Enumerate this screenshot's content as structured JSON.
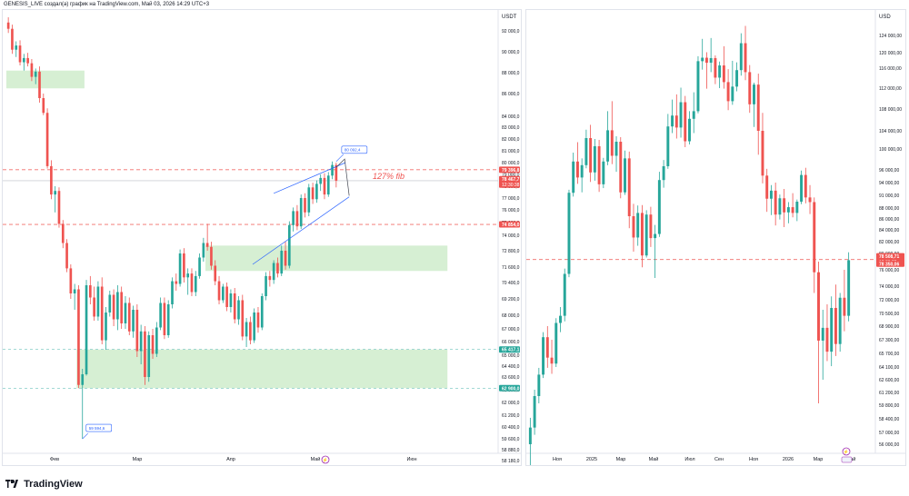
{
  "header": {
    "text": "GENESIS_LIVE создал(а) график на TradingView.com, Май 03, 2026 14:29 UTC+3"
  },
  "footer": {
    "brand": "TradingView"
  },
  "colors": {
    "up": "#26a69a",
    "down": "#ef5350",
    "zone": "#d6efd3",
    "axis": "#e0e3eb",
    "text": "#131722"
  },
  "chart_data": [
    {
      "type": "candlestick",
      "symbol_currency": "USDT",
      "x_ticks": [
        "Фев",
        "Мар",
        "Апр",
        "Май",
        "Июн"
      ],
      "y_ticks": [
        "92 000,0",
        "90 000,0",
        "88 000,0",
        "86 000,0",
        "84 000,0",
        "83 000,0",
        "82 000,0",
        "81 000,0",
        "80 000,0",
        "79 000,0",
        "78 000,0",
        "77 000,0",
        "76 000,0",
        "75 000,0",
        "74 000,0",
        "72 800,0",
        "71 600,0",
        "70 400,0",
        "69 200,0",
        "68 000,0",
        "67 000,0",
        "66 000,0",
        "65 000,0",
        "64 400,0",
        "63 600,0",
        "62 800,0",
        "62 000,0",
        "61 200,0",
        "60 400,0",
        "59 600,0",
        "58 880,0",
        "58 180,0"
      ],
      "price_labels": [
        {
          "text": "79 396,8",
          "price": 79396.8,
          "color": "#ef5350"
        },
        {
          "text": "78 467,7",
          "price": 78600,
          "color": "#ef5350",
          "sub": "12:30:38"
        },
        {
          "text": "74 854,0",
          "price": 74854.0,
          "color": "#ef5350"
        },
        {
          "text": "65 417,1",
          "price": 65417.1,
          "color": "#26a69a"
        },
        {
          "text": "62 900,0",
          "price": 62900.0,
          "color": "#26a69a"
        }
      ],
      "annotations": [
        {
          "text": "127% fib",
          "color": "#ef5350"
        },
        {
          "text": "80 092,4",
          "price": 80092.4
        },
        {
          "text": "59 594,6",
          "price": 59594.6
        }
      ],
      "hlines": [
        {
          "price": 79396.8,
          "style": "dashed",
          "color": "#ef5350"
        },
        {
          "price": 74854.0,
          "style": "dashed",
          "color": "#ef5350"
        },
        {
          "price": 65417.1,
          "style": "dashed-thin",
          "color": "#26a69a"
        },
        {
          "price": 62900.0,
          "style": "dashed-thin",
          "color": "#26a69a"
        },
        {
          "price": 78467.7,
          "style": "solid-thin",
          "color": "#b2b5be"
        }
      ],
      "zones": [
        {
          "from_day": 0,
          "to_day": 20,
          "low": 86500,
          "high": 88200
        },
        {
          "from_day": 51,
          "to_day": 113,
          "low": 71300,
          "high": 73200
        },
        {
          "from_day": 18,
          "to_day": 113,
          "low": 62900,
          "high": 65417.1
        }
      ],
      "candles": [
        [
          92800,
          93300,
          91800,
          92200
        ],
        [
          92200,
          92600,
          89800,
          90200
        ],
        [
          90200,
          91000,
          89500,
          90600
        ],
        [
          90600,
          91100,
          88700,
          89000
        ],
        [
          89000,
          89800,
          88200,
          89400
        ],
        [
          89400,
          89900,
          88600,
          88900
        ],
        [
          88900,
          89300,
          87200,
          87600
        ],
        [
          87600,
          88400,
          86900,
          88100
        ],
        [
          88100,
          88600,
          85200,
          85600
        ],
        [
          85600,
          86000,
          84100,
          84300
        ],
        [
          84300,
          84700,
          79500,
          79700
        ],
        [
          79700,
          80200,
          76900,
          77300
        ],
        [
          77300,
          78000,
          75800,
          77600
        ],
        [
          77600,
          77900,
          74600,
          74900
        ],
        [
          74900,
          75200,
          73000,
          73400
        ],
        [
          73400,
          73700,
          71200,
          71500
        ],
        [
          71500,
          71800,
          69200,
          69600
        ],
        [
          69600,
          70300,
          68400,
          69900
        ],
        [
          69900,
          70200,
          62900,
          63100
        ],
        [
          63100,
          64200,
          59594.6,
          63800
        ],
        [
          63800,
          70600,
          63700,
          70200
        ],
        [
          70200,
          70900,
          68800,
          69300
        ],
        [
          69300,
          70100,
          67600,
          67900
        ],
        [
          67900,
          70500,
          67600,
          70100
        ],
        [
          70100,
          70800,
          65800,
          66100
        ],
        [
          66100,
          68600,
          65400,
          68200
        ],
        [
          68200,
          69800,
          67900,
          69500
        ],
        [
          69500,
          69900,
          67200,
          67700
        ],
        [
          67700,
          70200,
          66900,
          69700
        ],
        [
          69700,
          70100,
          67000,
          67400
        ],
        [
          67400,
          69400,
          67000,
          68900
        ],
        [
          68900,
          69300,
          66500,
          66800
        ],
        [
          66800,
          68700,
          66300,
          68400
        ],
        [
          68400,
          68800,
          64900,
          65300
        ],
        [
          65300,
          67300,
          64500,
          66800
        ],
        [
          66800,
          67200,
          63100,
          63600
        ],
        [
          63600,
          66800,
          63300,
          66500
        ],
        [
          66500,
          67000,
          64800,
          65100
        ],
        [
          65100,
          67500,
          64900,
          67100
        ],
        [
          67100,
          69300,
          66900,
          68900
        ],
        [
          68900,
          69300,
          66200,
          66500
        ],
        [
          66500,
          69100,
          66300,
          68800
        ],
        [
          68800,
          70800,
          68500,
          70500
        ],
        [
          70500,
          71100,
          69800,
          70300
        ],
        [
          70300,
          72900,
          70100,
          72600
        ],
        [
          72600,
          73000,
          70400,
          70800
        ],
        [
          70800,
          71500,
          69500,
          71100
        ],
        [
          71100,
          71500,
          69400,
          69700
        ],
        [
          69700,
          71300,
          69400,
          70900
        ],
        [
          70900,
          72600,
          70700,
          72300
        ],
        [
          72300,
          73800,
          72000,
          73400
        ],
        [
          73400,
          74900,
          72800,
          73100
        ],
        [
          73100,
          73500,
          71400,
          71700
        ],
        [
          71700,
          72100,
          70200,
          70500
        ],
        [
          70500,
          70900,
          68800,
          69100
        ],
        [
          69100,
          70300,
          68900,
          70100
        ],
        [
          70100,
          70400,
          68300,
          68600
        ],
        [
          68600,
          69900,
          68200,
          69600
        ],
        [
          69600,
          70000,
          67400,
          67700
        ],
        [
          67700,
          69400,
          67300,
          69100
        ],
        [
          69100,
          69500,
          66100,
          66400
        ],
        [
          66400,
          67800,
          65600,
          67500
        ],
        [
          67500,
          67900,
          65800,
          66100
        ],
        [
          66100,
          68500,
          65900,
          68200
        ],
        [
          68200,
          68600,
          66700,
          67100
        ],
        [
          67100,
          69600,
          66900,
          69400
        ],
        [
          69400,
          71200,
          69100,
          70900
        ],
        [
          70900,
          71300,
          70100,
          70600
        ],
        [
          70600,
          72100,
          70300,
          71900
        ],
        [
          71900,
          72300,
          70800,
          71100
        ],
        [
          71100,
          73200,
          70900,
          72800
        ],
        [
          72800,
          73500,
          71400,
          71700
        ],
        [
          71700,
          75100,
          71500,
          74800
        ],
        [
          74800,
          76200,
          74300,
          75900
        ],
        [
          75900,
          76400,
          74400,
          74700
        ],
        [
          74700,
          77300,
          74500,
          77000
        ],
        [
          77000,
          77400,
          75400,
          75800
        ],
        [
          75800,
          78200,
          75500,
          77900
        ],
        [
          77900,
          78300,
          76500,
          76900
        ],
        [
          76900,
          78500,
          76600,
          78200
        ],
        [
          78200,
          79000,
          77600,
          78700
        ],
        [
          78700,
          79100,
          76900,
          77300
        ],
        [
          77300,
          79200,
          77100,
          78900
        ],
        [
          78900,
          80092.4,
          78600,
          79800
        ],
        [
          79800,
          80000,
          77900,
          78467.7
        ]
      ]
    },
    {
      "type": "candlestick",
      "symbol_currency": "USD",
      "x_ticks": [
        "Ноя",
        "2025",
        "Мар",
        "Май",
        "Июл",
        "Сен",
        "Ноя",
        "2026",
        "Мар",
        "Май"
      ],
      "y_ticks": [
        "124 000,00",
        "120 000,00",
        "116 000,00",
        "112 000,00",
        "108 000,00",
        "104 000,00",
        "100 000,00",
        "96 000,00",
        "94 000,00",
        "91 000,00",
        "88 000,00",
        "86 000,00",
        "84 000,00",
        "82 000,00",
        "80 000,00",
        "76 000,00",
        "74 000,00",
        "72 000,00",
        "70 500,00",
        "68 900,00",
        "67 300,00",
        "65 700,00",
        "64 100,00",
        "62 600,00",
        "61 200,00",
        "59 800,00",
        "58 400,00",
        "57 000,00",
        "56 000,00"
      ],
      "price_labels": [
        {
          "text": "78 508,71",
          "price": 79300,
          "color": "#ef5350",
          "sub": "12:30:38"
        },
        {
          "text": "78 350,06",
          "price": 77500,
          "color": "#ef5350"
        }
      ],
      "hlines": [
        {
          "price": 78508.71,
          "style": "dashed",
          "color": "#ef5350"
        }
      ],
      "candles": [
        [
          56000,
          58500,
          53000,
          57500
        ],
        [
          57500,
          61500,
          56800,
          60800
        ],
        [
          60800,
          64000,
          60000,
          63200
        ],
        [
          63200,
          68200,
          62800,
          67600
        ],
        [
          67600,
          68900,
          64000,
          65200
        ],
        [
          65200,
          67300,
          63300,
          64500
        ],
        [
          64500,
          69900,
          64100,
          69300
        ],
        [
          69300,
          71200,
          68200,
          70200
        ],
        [
          70200,
          76300,
          69500,
          75500
        ],
        [
          75500,
          92300,
          75100,
          91600
        ],
        [
          91600,
          99300,
          90700,
          97600
        ],
        [
          97600,
          101500,
          93700,
          94800
        ],
        [
          94800,
          98200,
          91700,
          96900
        ],
        [
          96900,
          104200,
          96300,
          102400
        ],
        [
          102400,
          105100,
          94100,
          95600
        ],
        [
          95600,
          102200,
          94300,
          100600
        ],
        [
          100600,
          102000,
          91800,
          93600
        ],
        [
          93600,
          98300,
          92700,
          97600
        ],
        [
          97600,
          107600,
          96900,
          104100
        ],
        [
          104100,
          109500,
          97100,
          98700
        ],
        [
          98700,
          102800,
          95700,
          101600
        ],
        [
          101600,
          102600,
          90300,
          91700
        ],
        [
          91700,
          99700,
          91100,
          98200
        ],
        [
          98200,
          99500,
          84300,
          86500
        ],
        [
          86500,
          89000,
          80300,
          82700
        ],
        [
          82700,
          88600,
          81300,
          87100
        ],
        [
          87100,
          88700,
          76600,
          79500
        ],
        [
          79500,
          87600,
          79000,
          86800
        ],
        [
          86800,
          88300,
          81100,
          82600
        ],
        [
          82600,
          84900,
          75000,
          83300
        ],
        [
          83300,
          95700,
          82800,
          94400
        ],
        [
          94400,
          97900,
          92800,
          96700
        ],
        [
          96700,
          107100,
          96200,
          104800
        ],
        [
          104800,
          109800,
          103500,
          106800
        ],
        [
          106800,
          110800,
          102300,
          104600
        ],
        [
          104600,
          112100,
          102500,
          109300
        ],
        [
          109300,
          110500,
          100400,
          101700
        ],
        [
          101700,
          107600,
          101000,
          106200
        ],
        [
          106200,
          111200,
          103500,
          107600
        ],
        [
          107600,
          119100,
          107200,
          117800
        ],
        [
          117800,
          123200,
          115700,
          118700
        ],
        [
          118700,
          120100,
          111900,
          117400
        ],
        [
          117400,
          123400,
          115200,
          118600
        ],
        [
          118600,
          119300,
          112800,
          114100
        ],
        [
          114100,
          117700,
          112000,
          116700
        ],
        [
          116700,
          121500,
          111900,
          113200
        ],
        [
          113200,
          115800,
          107800,
          109500
        ],
        [
          109500,
          117900,
          108800,
          112300
        ],
        [
          112300,
          117500,
          111400,
          115600
        ],
        [
          115600,
          124500,
          114500,
          122200
        ],
        [
          122200,
          126200,
          113600,
          115200
        ],
        [
          115200,
          116800,
          107300,
          108900
        ],
        [
          108900,
          113100,
          104700,
          112700
        ],
        [
          112700,
          114900,
          98900,
          104000
        ],
        [
          104000,
          107300,
          93800,
          95100
        ],
        [
          95100,
          96200,
          87300,
          90200
        ],
        [
          90200,
          93400,
          86700,
          92100
        ],
        [
          92100,
          94000,
          84800,
          86800
        ],
        [
          86800,
          91200,
          85900,
          90300
        ],
        [
          90300,
          92500,
          84500,
          87200
        ],
        [
          87200,
          89400,
          85200,
          88200
        ],
        [
          88200,
          91500,
          86300,
          87100
        ],
        [
          87100,
          90000,
          85600,
          89500
        ],
        [
          89500,
          95900,
          88900,
          95200
        ],
        [
          95200,
          96400,
          89100,
          90500
        ],
        [
          90500,
          93400,
          86900,
          89400
        ],
        [
          89400,
          90500,
          73000,
          75700
        ],
        [
          75700,
          78000,
          60000,
          67200
        ],
        [
          67200,
          70900,
          62600,
          68700
        ],
        [
          68700,
          71500,
          64800,
          65900
        ],
        [
          65900,
          72500,
          64200,
          71100
        ],
        [
          71100,
          74200,
          65400,
          66800
        ],
        [
          66800,
          73000,
          65900,
          72300
        ],
        [
          72300,
          76000,
          68300,
          70200
        ],
        [
          70200,
          80200,
          69500,
          78350
        ]
      ]
    }
  ]
}
